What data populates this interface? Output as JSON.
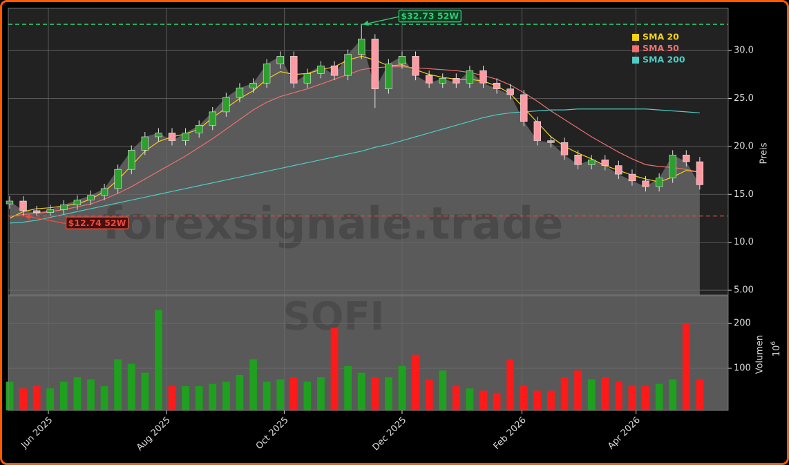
{
  "chart_data": {
    "type": "candlestick",
    "categories": [
      null,
      null,
      null,
      null,
      null,
      null,
      null,
      null,
      null,
      null,
      null,
      null,
      null,
      null,
      null,
      null,
      null,
      null,
      null,
      null,
      null,
      null,
      null,
      null,
      null,
      null,
      null,
      null,
      null,
      null,
      null,
      null,
      null,
      null,
      null,
      null,
      null,
      null,
      null,
      null,
      null,
      null,
      null,
      null,
      null,
      null,
      null,
      null,
      null,
      null,
      null,
      null
    ],
    "xlim": [
      -0.1,
      53.1
    ],
    "xticks": [
      {
        "value": 2.86,
        "label": "Jun 2025"
      },
      {
        "value": 11.57,
        "label": "Aug 2025"
      },
      {
        "value": 20.29,
        "label": "Oct 2025"
      },
      {
        "value": 29,
        "label": "Dec 2025"
      },
      {
        "value": 37.86,
        "label": "Feb 2026"
      },
      {
        "value": 46.29,
        "label": "Apr 2026"
      }
    ],
    "ylabel": "Preis",
    "ylim": [
      4.5,
      34.4
    ],
    "yticks": [
      {
        "value": 5,
        "label": "5.00"
      },
      {
        "value": 10,
        "label": "10.0"
      },
      {
        "value": 15,
        "label": "15.0"
      },
      {
        "value": 20,
        "label": "20.0"
      },
      {
        "value": 25,
        "label": "25.0"
      },
      {
        "value": 30,
        "label": "30.0"
      }
    ],
    "grid": true,
    "up_color": "#2ca02c",
    "down_color": "#ff9aa2",
    "area_color": "#5a5a5a",
    "open": [
      14.0,
      14.3,
      13.3,
      13.1,
      13.4,
      13.9,
      14.4,
      14.9,
      15.6,
      17.6,
      19.6,
      21.0,
      21.4,
      20.6,
      21.4,
      22.2,
      23.6,
      25.1,
      26.1,
      26.6,
      28.6,
      29.4,
      26.6,
      27.6,
      28.4,
      27.4,
      29.6,
      31.2,
      26.0,
      28.6,
      29.4,
      27.4,
      26.6,
      27.1,
      26.6,
      27.9,
      26.6,
      26.0,
      25.4,
      22.6,
      20.6,
      20.4,
      19.1,
      18.1,
      18.6,
      18.0,
      17.1,
      16.4,
      15.8,
      16.7,
      19.1,
      18.4
    ],
    "high": [
      14.8,
      14.8,
      13.8,
      13.9,
      14.4,
      14.9,
      15.4,
      16.1,
      18.1,
      20.1,
      21.5,
      21.9,
      21.9,
      21.9,
      22.7,
      24.1,
      25.6,
      26.6,
      27.1,
      29.1,
      29.9,
      29.9,
      28.1,
      28.9,
      28.9,
      30.1,
      32.73,
      31.7,
      29.1,
      29.9,
      29.9,
      27.9,
      27.6,
      27.6,
      28.4,
      28.4,
      27.1,
      26.5,
      25.9,
      23.1,
      21.1,
      20.9,
      19.6,
      19.1,
      19.1,
      18.5,
      17.6,
      16.9,
      17.2,
      19.6,
      19.6,
      18.9
    ],
    "low": [
      13.5,
      12.74,
      12.8,
      12.8,
      12.9,
      13.4,
      13.9,
      14.4,
      15.1,
      17.1,
      19.1,
      20.5,
      20.1,
      20.1,
      20.9,
      21.7,
      23.1,
      24.6,
      25.6,
      26.1,
      28.1,
      26.1,
      26.1,
      27.1,
      26.9,
      26.9,
      29.1,
      24.0,
      25.5,
      28.1,
      26.9,
      26.1,
      26.1,
      26.1,
      26.1,
      26.1,
      25.5,
      24.9,
      22.1,
      20.1,
      19.9,
      18.6,
      17.6,
      17.6,
      17.5,
      16.6,
      15.9,
      15.3,
      15.3,
      16.2,
      17.9,
      15.5
    ],
    "close": [
      14.3,
      13.3,
      13.1,
      13.4,
      13.9,
      14.4,
      14.9,
      15.6,
      17.6,
      19.6,
      21.0,
      21.4,
      20.6,
      21.4,
      22.2,
      23.6,
      25.1,
      26.1,
      26.6,
      28.6,
      29.4,
      26.6,
      27.6,
      28.4,
      27.4,
      29.6,
      31.2,
      26.0,
      28.6,
      29.4,
      27.4,
      26.6,
      27.1,
      26.6,
      27.9,
      26.6,
      26.0,
      25.4,
      22.6,
      20.6,
      20.4,
      19.1,
      18.1,
      18.6,
      18.0,
      17.1,
      16.4,
      15.8,
      16.7,
      19.1,
      18.4,
      16.0
    ],
    "series": [
      {
        "name": "SMA 20",
        "color": "#f5d215",
        "values": [
          12.5,
          13.2,
          13.5,
          13.6,
          13.8,
          14.0,
          14.5,
          15.3,
          16.5,
          18.0,
          19.5,
          20.5,
          21.0,
          21.3,
          21.8,
          23.0,
          24.0,
          25.0,
          25.8,
          27.0,
          27.8,
          27.5,
          27.6,
          28.0,
          28.3,
          29.0,
          29.4,
          29.0,
          28.4,
          28.5,
          28.0,
          27.5,
          27.2,
          27.0,
          27.0,
          26.8,
          26.3,
          25.5,
          24.0,
          22.5,
          21.0,
          20.0,
          19.3,
          18.7,
          18.0,
          17.5,
          17.0,
          16.6,
          16.3,
          16.8,
          17.5,
          17.3
        ]
      },
      {
        "name": "SMA 50",
        "color": "#f07070",
        "values": [
          12.7,
          12.9,
          13.0,
          13.2,
          13.4,
          13.7,
          14.0,
          14.5,
          15.1,
          15.8,
          16.6,
          17.4,
          18.2,
          19.0,
          19.9,
          20.8,
          21.8,
          22.8,
          23.8,
          24.6,
          25.2,
          25.6,
          26.0,
          26.5,
          27.0,
          27.5,
          28.0,
          28.2,
          28.3,
          28.3,
          28.2,
          28.1,
          28.0,
          27.9,
          27.7,
          27.4,
          27.0,
          26.4,
          25.6,
          24.7,
          23.7,
          22.8,
          21.9,
          21.0,
          20.2,
          19.4,
          18.7,
          18.1,
          17.9,
          17.8,
          17.6,
          17.3
        ]
      },
      {
        "name": "SMA 200",
        "color": "#4ecdc4",
        "values": [
          12.0,
          12.1,
          12.3,
          12.6,
          12.9,
          13.2,
          13.5,
          13.8,
          14.1,
          14.4,
          14.7,
          15.0,
          15.3,
          15.6,
          15.9,
          16.2,
          16.5,
          16.8,
          17.1,
          17.4,
          17.7,
          18.0,
          18.3,
          18.6,
          18.9,
          19.2,
          19.5,
          19.9,
          20.2,
          20.6,
          21.0,
          21.4,
          21.8,
          22.2,
          22.6,
          23.0,
          23.3,
          23.5,
          23.6,
          23.7,
          23.8,
          23.8,
          23.9,
          23.9,
          23.9,
          23.9,
          23.9,
          23.9,
          23.8,
          23.7,
          23.6,
          23.5
        ]
      }
    ],
    "annotations": [
      {
        "label": "$32.73 52W",
        "value": 32.73,
        "color": "#2ecc71"
      },
      {
        "label": "$12.74 52W",
        "value": 12.74,
        "color": "#e74c3c"
      }
    ],
    "watermarks": [
      "forexsignale.trade",
      "SOFI"
    ],
    "volume": {
      "ylabel": "Volumen",
      "offset_label": "10",
      "offset_exponent": "6",
      "ylim": [
        6,
        262
      ],
      "yticks": [
        100,
        200
      ],
      "up_color": "#1fa01f",
      "down_color": "#ff1a1a",
      "values": [
        70,
        55,
        60,
        55,
        70,
        80,
        75,
        60,
        120,
        110,
        90,
        230,
        60,
        60,
        60,
        65,
        70,
        85,
        120,
        70,
        75,
        80,
        70,
        80,
        190,
        105,
        90,
        80,
        80,
        105,
        130,
        75,
        95,
        60,
        55,
        50,
        45,
        120,
        60,
        50,
        50,
        80,
        95,
        75,
        80,
        70,
        60,
        60,
        65,
        75,
        200,
        75
      ]
    }
  }
}
